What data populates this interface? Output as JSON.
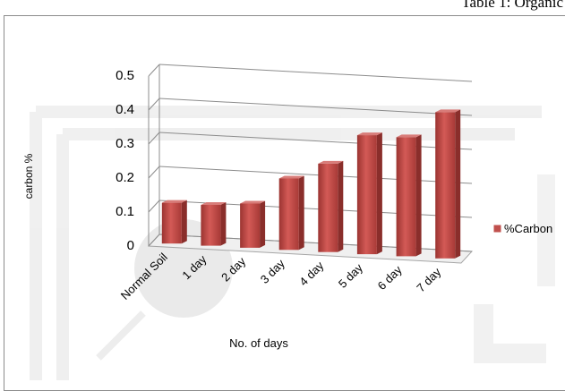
{
  "caption": "Table 1: Organic",
  "chart_data": {
    "type": "bar",
    "categories": [
      "Normal Soil",
      "1 day",
      "2 day",
      "3 day",
      "4 day",
      "5 day",
      "6 day",
      "7 day"
    ],
    "series": [
      {
        "name": "%Carbon",
        "values": [
          0.12,
          0.12,
          0.13,
          0.21,
          0.26,
          0.35,
          0.35,
          0.43
        ],
        "color": "#c0504d"
      }
    ],
    "xlabel": "No. of days",
    "ylabel": "carbon %",
    "ylim": [
      0,
      0.5
    ],
    "y_ticks": [
      "0",
      "0.1",
      "0.2",
      "0.3",
      "0.4",
      "0.5"
    ],
    "grid": true,
    "projection": "3d",
    "legend_position": "right"
  }
}
